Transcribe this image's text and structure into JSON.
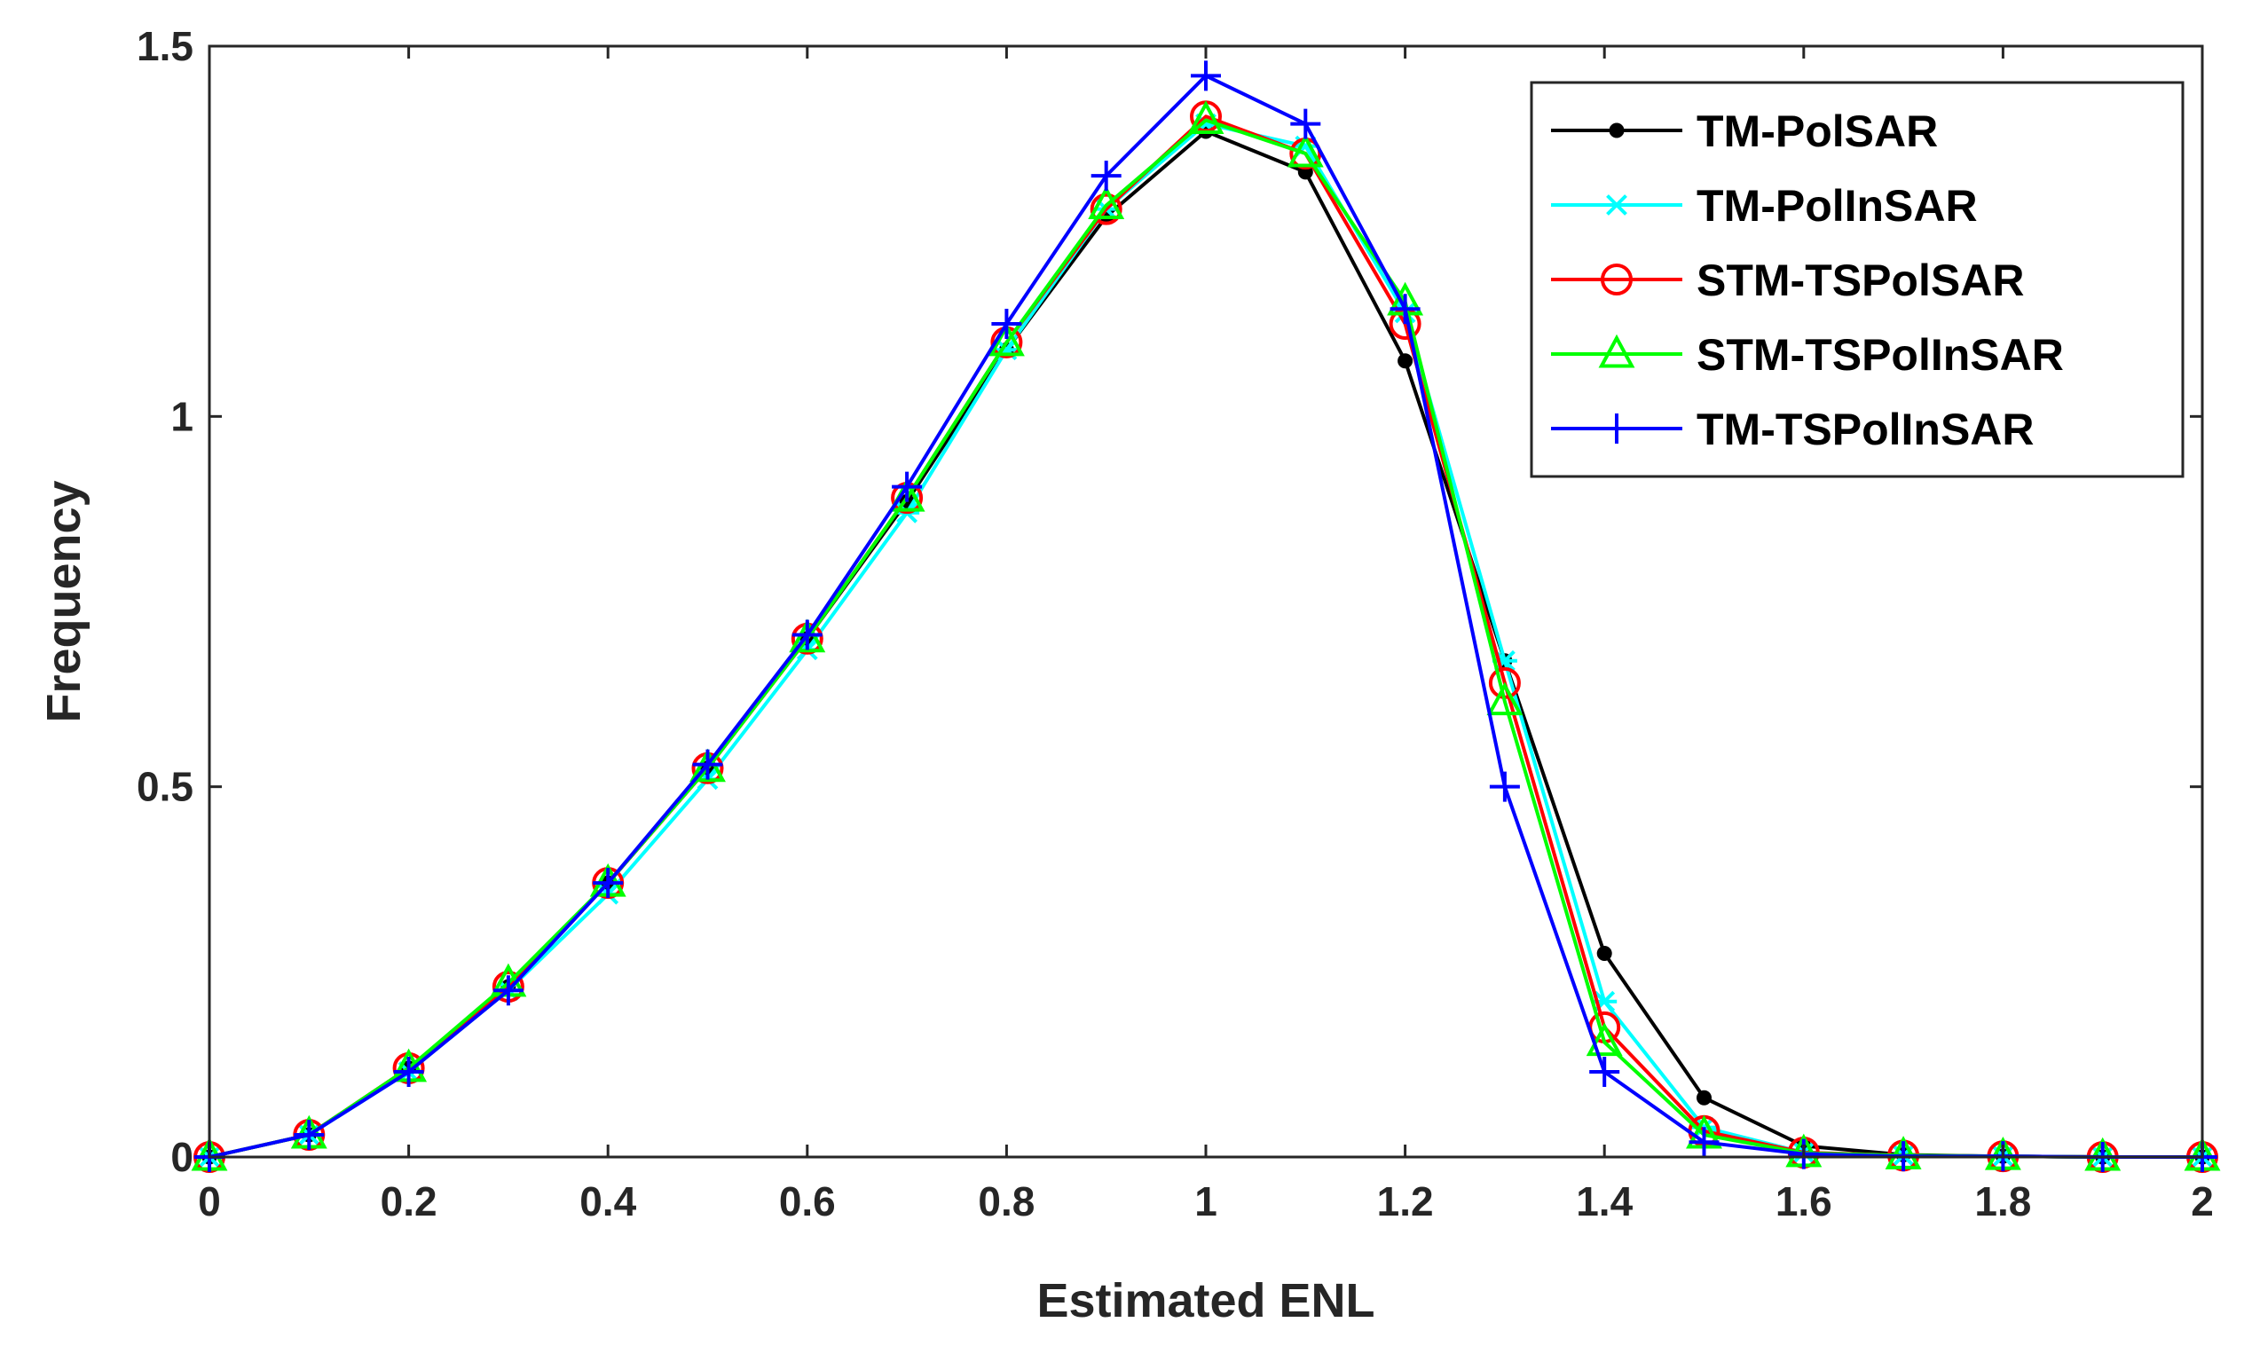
{
  "chart_data": {
    "type": "line",
    "title": "",
    "xlabel": "Estimated ENL",
    "ylabel": "Frequency",
    "xlim": [
      0,
      2
    ],
    "ylim": [
      0,
      1.5
    ],
    "xticks": [
      0,
      0.2,
      0.4,
      0.6,
      0.8,
      1,
      1.2,
      1.4,
      1.6,
      1.8,
      2
    ],
    "xtick_labels": [
      "0",
      "0.2",
      "0.4",
      "0.6",
      "0.8",
      "1",
      "1.2",
      "1.4",
      "1.6",
      "1.8",
      "2"
    ],
    "yticks": [
      0,
      0.5,
      1,
      1.5
    ],
    "ytick_labels": [
      "0",
      "0.5",
      "1",
      "1.5"
    ],
    "grid": false,
    "legend_position": "top-right",
    "x": [
      0,
      0.1,
      0.2,
      0.3,
      0.4,
      0.5,
      0.6,
      0.7,
      0.8,
      0.9,
      1.0,
      1.1,
      1.2,
      1.3,
      1.4,
      1.5,
      1.6,
      1.7,
      1.8,
      1.9,
      2.0
    ],
    "series": [
      {
        "name": "TM-PolSAR",
        "color": "#000000",
        "marker": "dot",
        "values": [
          0,
          0.03,
          0.12,
          0.23,
          0.37,
          0.525,
          0.7,
          0.885,
          1.09,
          1.27,
          1.385,
          1.33,
          1.075,
          0.67,
          0.275,
          0.08,
          0.015,
          0.003,
          0.001,
          0,
          0
        ]
      },
      {
        "name": "TM-PolInSAR",
        "color": "#00ffff",
        "marker": "asterisk",
        "values": [
          0,
          0.03,
          0.115,
          0.225,
          0.355,
          0.51,
          0.685,
          0.87,
          1.09,
          1.28,
          1.395,
          1.365,
          1.14,
          0.67,
          0.21,
          0.04,
          0.006,
          0.002,
          0.001,
          0,
          0
        ]
      },
      {
        "name": "STM-TSPolSAR",
        "color": "#ff0000",
        "marker": "circle",
        "values": [
          0,
          0.03,
          0.12,
          0.23,
          0.37,
          0.525,
          0.7,
          0.89,
          1.1,
          1.28,
          1.405,
          1.355,
          1.125,
          0.64,
          0.175,
          0.035,
          0.006,
          0.002,
          0.001,
          0,
          0
        ]
      },
      {
        "name": "STM-TSPolInSAR",
        "color": "#00ff00",
        "marker": "triangle",
        "values": [
          0,
          0.03,
          0.12,
          0.235,
          0.37,
          0.525,
          0.7,
          0.89,
          1.1,
          1.285,
          1.4,
          1.355,
          1.155,
          0.615,
          0.155,
          0.03,
          0.005,
          0.002,
          0.001,
          0,
          0
        ]
      },
      {
        "name": "TM-TSPolInSAR",
        "color": "#0000ff",
        "marker": "plus",
        "values": [
          0,
          0.03,
          0.115,
          0.225,
          0.37,
          0.53,
          0.705,
          0.905,
          1.125,
          1.325,
          1.46,
          1.395,
          1.145,
          0.5,
          0.115,
          0.02,
          0.004,
          0.001,
          0.001,
          0,
          0
        ]
      }
    ]
  }
}
